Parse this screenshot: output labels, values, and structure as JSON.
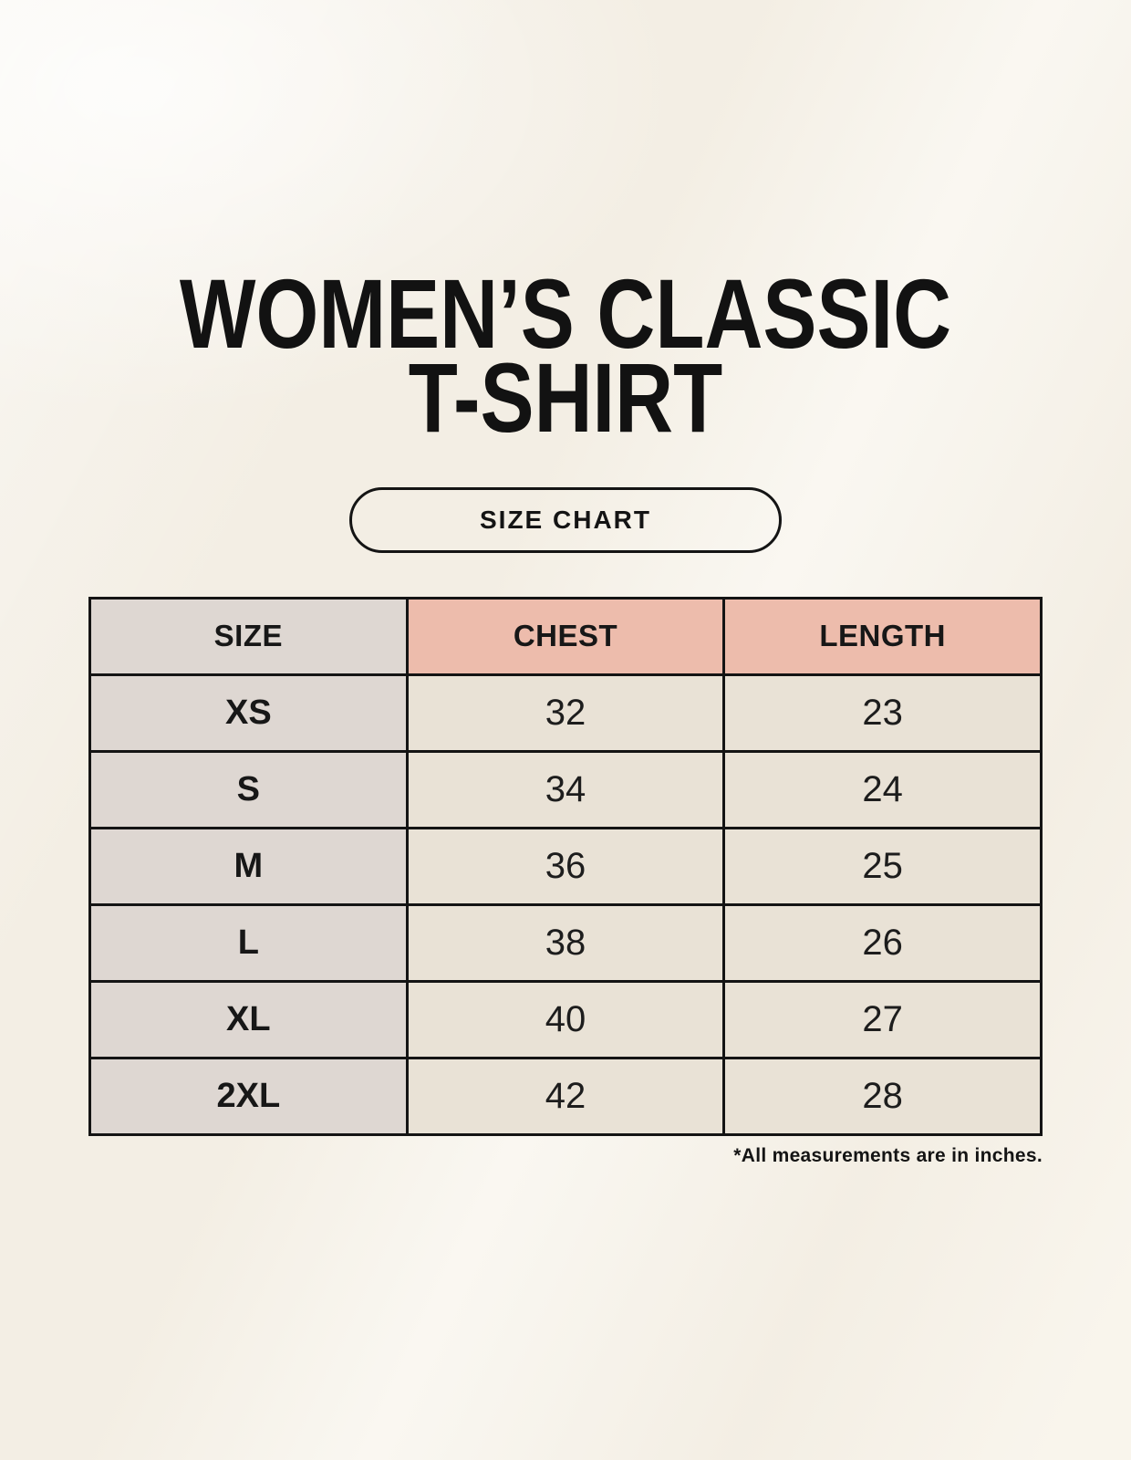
{
  "header": {
    "title_line1": "WOMEN’S CLASSIC",
    "title_line2": "T-SHIRT",
    "badge_label": "SIZE CHART"
  },
  "chart_data": {
    "type": "table",
    "title": "WOMEN’S CLASSIC T-SHIRT",
    "subtitle_badge": "SIZE CHART",
    "columns": [
      "SIZE",
      "CHEST",
      "LENGTH"
    ],
    "rows": [
      [
        "XS",
        "32",
        "23"
      ],
      [
        "S",
        "34",
        "24"
      ],
      [
        "M",
        "36",
        "25"
      ],
      [
        "L",
        "38",
        "26"
      ],
      [
        "XL",
        "40",
        "27"
      ],
      [
        "2XL",
        "42",
        "28"
      ]
    ],
    "footnote": "*All measurements are in inches.",
    "units": "inches"
  },
  "colors": {
    "background": "#f7f3ea",
    "size_column_bg": "#ded7d2",
    "header_accent_bg": "#edbcac",
    "data_cell_bg": "#e9e2d6",
    "border": "#141414",
    "text": "#171717"
  }
}
